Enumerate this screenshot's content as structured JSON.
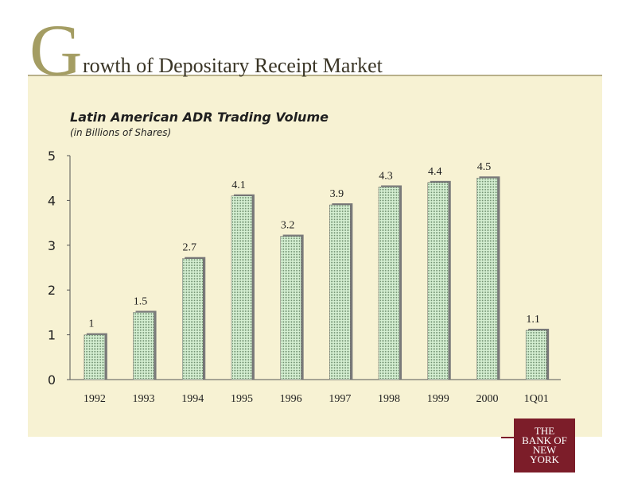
{
  "header": {
    "initial": "G",
    "title_rest": "rowth of Depositary Receipt Market"
  },
  "chart_data": {
    "type": "bar",
    "title": "Latin American ADR Trading Volume",
    "subtitle": "(in Billions of Shares)",
    "categories": [
      "1992",
      "1993",
      "1994",
      "1995",
      "1996",
      "1997",
      "1998",
      "1999",
      "2000",
      "1Q01"
    ],
    "values": [
      1,
      1.5,
      2.7,
      4.1,
      3.2,
      3.9,
      4.3,
      4.4,
      4.5,
      1.1
    ],
    "data_labels": [
      "1",
      "1.5",
      "2.7",
      "4.1",
      "3.2",
      "3.9",
      "4.3",
      "4.4",
      "4.5",
      "1.1"
    ],
    "ylim": [
      0,
      5
    ],
    "yticks": [
      "0",
      "1",
      "2",
      "3",
      "4",
      "5"
    ],
    "grid": false,
    "legend": "none",
    "colors": {
      "bar_fill": "#c9e8c9",
      "bar_shadow": "#7a7a7a",
      "axis": "#555555",
      "background": "#f7f2d3"
    }
  },
  "logo": {
    "line1": "THE",
    "line2": "BANK OF",
    "line3": "NEW",
    "line4": "YORK"
  }
}
